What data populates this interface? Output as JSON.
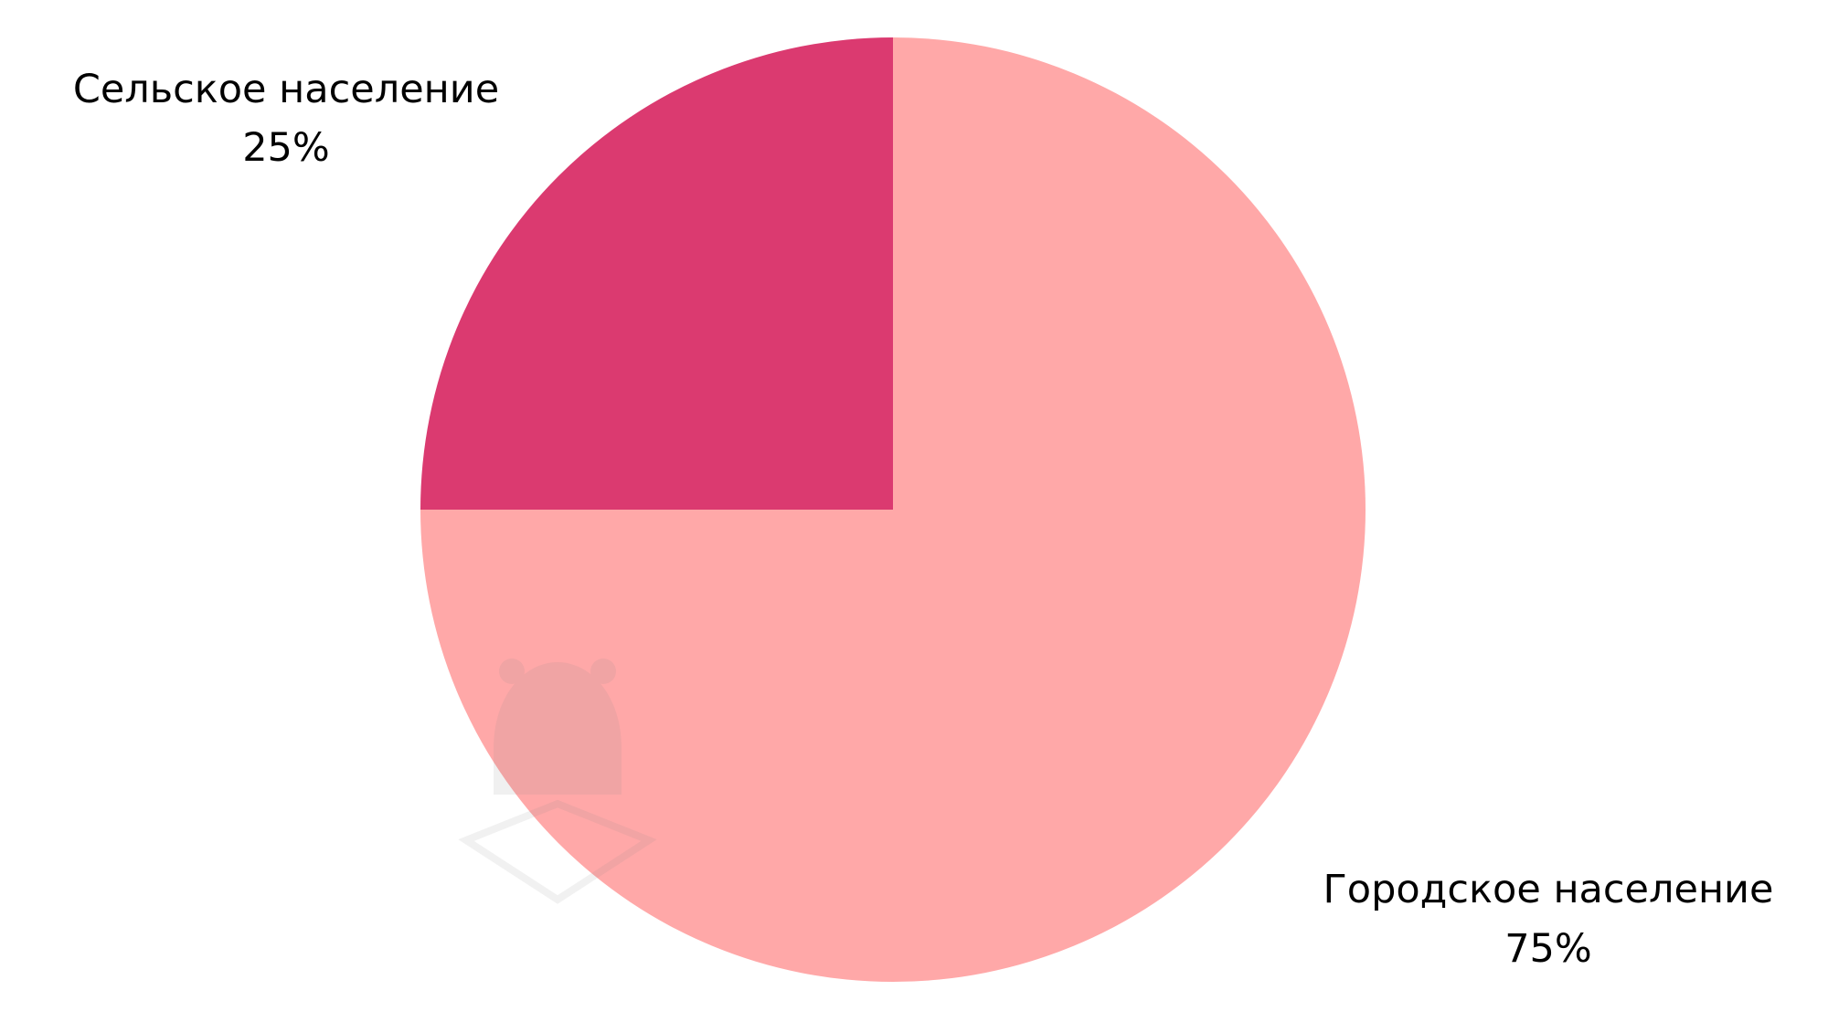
{
  "chart_data": {
    "type": "pie",
    "slices": [
      {
        "name": "Сельское население",
        "value": 25,
        "percent_label": "25%",
        "color": "#DB3A70"
      },
      {
        "name": "Городское население",
        "value": 75,
        "percent_label": "75%",
        "color": "#FFA8A8"
      }
    ],
    "title": "",
    "legend": "none"
  }
}
